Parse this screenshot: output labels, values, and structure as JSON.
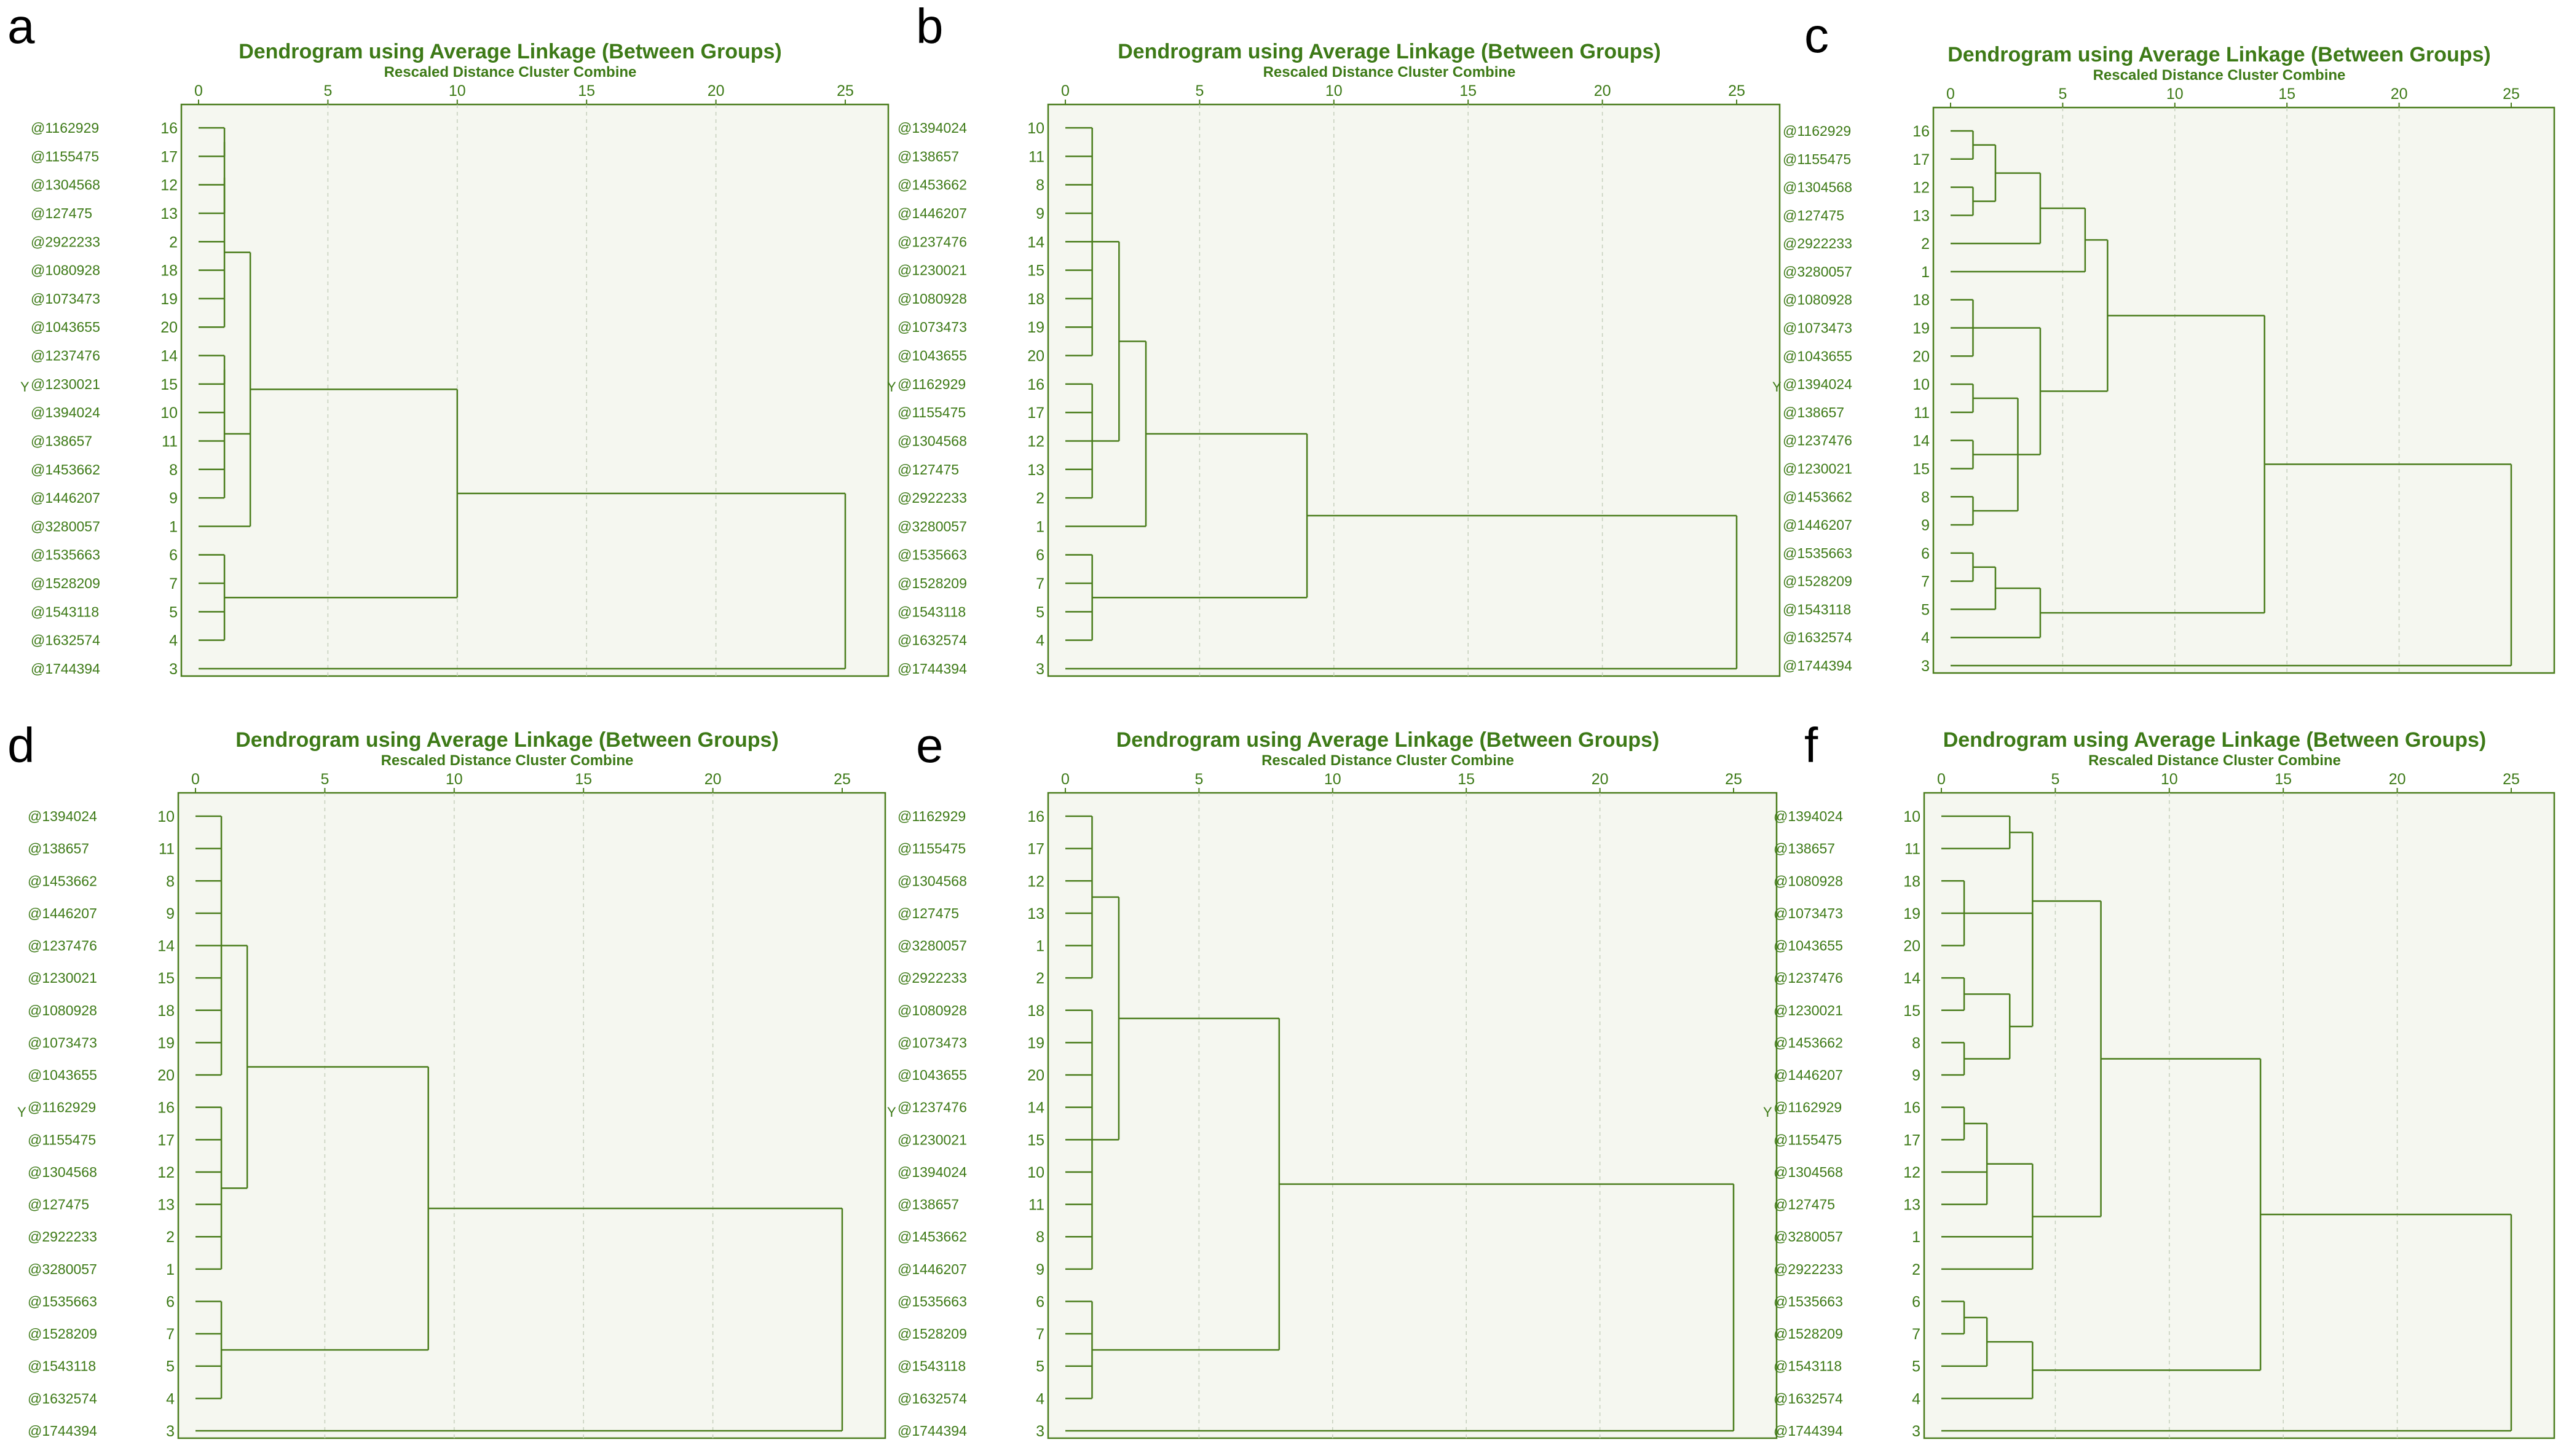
{
  "colors": {
    "line": "#4a7d1c",
    "text": "#3d7a17",
    "plot_bg": "#f5f7f0",
    "grid": "#c5cfbc"
  },
  "chart_data": [
    {
      "panel": "a",
      "type": "dendrogram",
      "title": "Dendrogram using Average Linkage (Between Groups)",
      "xlabel": "Rescaled Distance Cluster Combine",
      "ylabel": "Y",
      "xticks": [
        0,
        5,
        10,
        15,
        20,
        25
      ],
      "xlim": [
        0,
        25
      ],
      "leaves": [
        {
          "label": "@1162929",
          "num": "16"
        },
        {
          "label": "@1155475",
          "num": "17"
        },
        {
          "label": "@1304568",
          "num": "12"
        },
        {
          "label": "@127475",
          "num": "13"
        },
        {
          "label": "@2922233",
          "num": "2"
        },
        {
          "label": "@1080928",
          "num": "18"
        },
        {
          "label": "@1073473",
          "num": "19"
        },
        {
          "label": "@1043655",
          "num": "20"
        },
        {
          "label": "@1237476",
          "num": "14"
        },
        {
          "label": "@1230021",
          "num": "15"
        },
        {
          "label": "@1394024",
          "num": "10"
        },
        {
          "label": "@138657",
          "num": "11"
        },
        {
          "label": "@1453662",
          "num": "8"
        },
        {
          "label": "@1446207",
          "num": "9"
        },
        {
          "label": "@3280057",
          "num": "1"
        },
        {
          "label": "@1535663",
          "num": "6"
        },
        {
          "label": "@1528209",
          "num": "7"
        },
        {
          "label": "@1543118",
          "num": "5"
        },
        {
          "label": "@1632574",
          "num": "4"
        },
        {
          "label": "@1744394",
          "num": "3"
        }
      ],
      "merges": [
        {
          "id": "a1",
          "c": [
            0,
            1
          ],
          "h": 1
        },
        {
          "id": "a2",
          "c": [
            "a1",
            2,
            3
          ],
          "h": 1
        },
        {
          "id": "a3",
          "c": [
            "a2",
            4,
            5,
            6,
            7
          ],
          "h": 1
        },
        {
          "id": "a4",
          "c": [
            8,
            9
          ],
          "h": 1
        },
        {
          "id": "a5",
          "c": [
            "a4",
            10,
            11,
            12,
            13
          ],
          "h": 1
        },
        {
          "id": "a6",
          "c": [
            "a3",
            "a5",
            14
          ],
          "h": 2
        },
        {
          "id": "a7",
          "c": [
            15,
            16,
            17,
            18
          ],
          "h": 1
        },
        {
          "id": "a8",
          "c": [
            "a6",
            "a7"
          ],
          "h": 10
        },
        {
          "id": "a9",
          "c": [
            "a8",
            19
          ],
          "h": 25
        }
      ]
    },
    {
      "panel": "b",
      "type": "dendrogram",
      "title": "Dendrogram using Average Linkage (Between Groups)",
      "xlabel": "Rescaled Distance Cluster Combine",
      "ylabel": "Y",
      "xticks": [
        0,
        5,
        10,
        15,
        20,
        25
      ],
      "xlim": [
        0,
        25
      ],
      "leaves": [
        {
          "label": "@1394024",
          "num": "10"
        },
        {
          "label": "@138657",
          "num": "11"
        },
        {
          "label": "@1453662",
          "num": "8"
        },
        {
          "label": "@1446207",
          "num": "9"
        },
        {
          "label": "@1237476",
          "num": "14"
        },
        {
          "label": "@1230021",
          "num": "15"
        },
        {
          "label": "@1080928",
          "num": "18"
        },
        {
          "label": "@1073473",
          "num": "19"
        },
        {
          "label": "@1043655",
          "num": "20"
        },
        {
          "label": "@1162929",
          "num": "16"
        },
        {
          "label": "@1155475",
          "num": "17"
        },
        {
          "label": "@1304568",
          "num": "12"
        },
        {
          "label": "@127475",
          "num": "13"
        },
        {
          "label": "@2922233",
          "num": "2"
        },
        {
          "label": "@3280057",
          "num": "1"
        },
        {
          "label": "@1535663",
          "num": "6"
        },
        {
          "label": "@1528209",
          "num": "7"
        },
        {
          "label": "@1543118",
          "num": "5"
        },
        {
          "label": "@1632574",
          "num": "4"
        },
        {
          "label": "@1744394",
          "num": "3"
        }
      ],
      "merges": [
        {
          "id": "b1",
          "c": [
            0,
            1,
            2,
            3,
            4,
            5,
            6,
            7,
            8
          ],
          "h": 1
        },
        {
          "id": "b2",
          "c": [
            9,
            10,
            11,
            12,
            13
          ],
          "h": 1
        },
        {
          "id": "b3",
          "c": [
            "b1",
            "b2"
          ],
          "h": 2
        },
        {
          "id": "b4",
          "c": [
            "b3",
            14
          ],
          "h": 3
        },
        {
          "id": "b5",
          "c": [
            15,
            16,
            17,
            18
          ],
          "h": 1
        },
        {
          "id": "b6",
          "c": [
            "b4",
            "b5"
          ],
          "h": 9
        },
        {
          "id": "b7",
          "c": [
            "b6",
            19
          ],
          "h": 25
        }
      ]
    },
    {
      "panel": "c",
      "type": "dendrogram",
      "title": "Dendrogram using Average Linkage (Between Groups)",
      "xlabel": "Rescaled Distance Cluster Combine",
      "ylabel": "Y",
      "xticks": [
        0,
        5,
        10,
        15,
        20,
        25
      ],
      "xlim": [
        0,
        25
      ],
      "leaves": [
        {
          "label": "@1162929",
          "num": "16"
        },
        {
          "label": "@1155475",
          "num": "17"
        },
        {
          "label": "@1304568",
          "num": "12"
        },
        {
          "label": "@127475",
          "num": "13"
        },
        {
          "label": "@2922233",
          "num": "2"
        },
        {
          "label": "@3280057",
          "num": "1"
        },
        {
          "label": "@1080928",
          "num": "18"
        },
        {
          "label": "@1073473",
          "num": "19"
        },
        {
          "label": "@1043655",
          "num": "20"
        },
        {
          "label": "@1394024",
          "num": "10"
        },
        {
          "label": "@138657",
          "num": "11"
        },
        {
          "label": "@1237476",
          "num": "14"
        },
        {
          "label": "@1230021",
          "num": "15"
        },
        {
          "label": "@1453662",
          "num": "8"
        },
        {
          "label": "@1446207",
          "num": "9"
        },
        {
          "label": "@1535663",
          "num": "6"
        },
        {
          "label": "@1528209",
          "num": "7"
        },
        {
          "label": "@1543118",
          "num": "5"
        },
        {
          "label": "@1632574",
          "num": "4"
        },
        {
          "label": "@1744394",
          "num": "3"
        }
      ],
      "merges": [
        {
          "id": "c1",
          "c": [
            0,
            1
          ],
          "h": 1
        },
        {
          "id": "c2",
          "c": [
            2,
            3
          ],
          "h": 1
        },
        {
          "id": "c3",
          "c": [
            "c1",
            "c2"
          ],
          "h": 2
        },
        {
          "id": "c4",
          "c": [
            "c3",
            4
          ],
          "h": 4
        },
        {
          "id": "c5",
          "c": [
            "c4",
            5
          ],
          "h": 6
        },
        {
          "id": "c6",
          "c": [
            6,
            7,
            8
          ],
          "h": 1
        },
        {
          "id": "c7",
          "c": [
            9,
            10
          ],
          "h": 1
        },
        {
          "id": "c8",
          "c": [
            11,
            12
          ],
          "h": 1
        },
        {
          "id": "c9",
          "c": [
            13,
            14
          ],
          "h": 1
        },
        {
          "id": "c10",
          "c": [
            "c7",
            "c8",
            "c9"
          ],
          "h": 3
        },
        {
          "id": "c11",
          "c": [
            "c6",
            "c10"
          ],
          "h": 4
        },
        {
          "id": "c12",
          "c": [
            "c5",
            "c11"
          ],
          "h": 7
        },
        {
          "id": "c13",
          "c": [
            15,
            16
          ],
          "h": 1
        },
        {
          "id": "c14",
          "c": [
            "c13",
            17
          ],
          "h": 2
        },
        {
          "id": "c15",
          "c": [
            "c14",
            18
          ],
          "h": 4
        },
        {
          "id": "c16",
          "c": [
            "c12",
            "c15"
          ],
          "h": 14
        },
        {
          "id": "c17",
          "c": [
            "c16",
            19
          ],
          "h": 25
        }
      ]
    },
    {
      "panel": "d",
      "type": "dendrogram",
      "title": "Dendrogram using Average Linkage (Between Groups)",
      "xlabel": "Rescaled Distance Cluster Combine",
      "ylabel": "Y",
      "xticks": [
        0,
        5,
        10,
        15,
        20,
        25
      ],
      "xlim": [
        0,
        25
      ],
      "leaves": [
        {
          "label": "@1394024",
          "num": "10"
        },
        {
          "label": "@138657",
          "num": "11"
        },
        {
          "label": "@1453662",
          "num": "8"
        },
        {
          "label": "@1446207",
          "num": "9"
        },
        {
          "label": "@1237476",
          "num": "14"
        },
        {
          "label": "@1230021",
          "num": "15"
        },
        {
          "label": "@1080928",
          "num": "18"
        },
        {
          "label": "@1073473",
          "num": "19"
        },
        {
          "label": "@1043655",
          "num": "20"
        },
        {
          "label": "@1162929",
          "num": "16"
        },
        {
          "label": "@1155475",
          "num": "17"
        },
        {
          "label": "@1304568",
          "num": "12"
        },
        {
          "label": "@127475",
          "num": "13"
        },
        {
          "label": "@2922233",
          "num": "2"
        },
        {
          "label": "@3280057",
          "num": "1"
        },
        {
          "label": "@1535663",
          "num": "6"
        },
        {
          "label": "@1528209",
          "num": "7"
        },
        {
          "label": "@1543118",
          "num": "5"
        },
        {
          "label": "@1632574",
          "num": "4"
        },
        {
          "label": "@1744394",
          "num": "3"
        }
      ],
      "merges": [
        {
          "id": "d1",
          "c": [
            0,
            1,
            2,
            3,
            4,
            5,
            6,
            7,
            8
          ],
          "h": 1
        },
        {
          "id": "d2",
          "c": [
            9,
            10,
            11,
            12,
            13,
            14
          ],
          "h": 1
        },
        {
          "id": "d3",
          "c": [
            "d1",
            "d2"
          ],
          "h": 2
        },
        {
          "id": "d4",
          "c": [
            15,
            16,
            17,
            18
          ],
          "h": 1
        },
        {
          "id": "d5",
          "c": [
            "d3",
            "d4"
          ],
          "h": 9
        },
        {
          "id": "d6",
          "c": [
            "d5",
            19
          ],
          "h": 25
        }
      ]
    },
    {
      "panel": "e",
      "type": "dendrogram",
      "title": "Dendrogram using Average Linkage (Between Groups)",
      "xlabel": "Rescaled Distance Cluster Combine",
      "ylabel": "Y",
      "xticks": [
        0,
        5,
        10,
        15,
        20,
        25
      ],
      "xlim": [
        0,
        25
      ],
      "leaves": [
        {
          "label": "@1162929",
          "num": "16"
        },
        {
          "label": "@1155475",
          "num": "17"
        },
        {
          "label": "@1304568",
          "num": "12"
        },
        {
          "label": "@127475",
          "num": "13"
        },
        {
          "label": "@3280057",
          "num": "1"
        },
        {
          "label": "@2922233",
          "num": "2"
        },
        {
          "label": "@1080928",
          "num": "18"
        },
        {
          "label": "@1073473",
          "num": "19"
        },
        {
          "label": "@1043655",
          "num": "20"
        },
        {
          "label": "@1237476",
          "num": "14"
        },
        {
          "label": "@1230021",
          "num": "15"
        },
        {
          "label": "@1394024",
          "num": "10"
        },
        {
          "label": "@138657",
          "num": "11"
        },
        {
          "label": "@1453662",
          "num": "8"
        },
        {
          "label": "@1446207",
          "num": "9"
        },
        {
          "label": "@1535663",
          "num": "6"
        },
        {
          "label": "@1528209",
          "num": "7"
        },
        {
          "label": "@1543118",
          "num": "5"
        },
        {
          "label": "@1632574",
          "num": "4"
        },
        {
          "label": "@1744394",
          "num": "3"
        }
      ],
      "merges": [
        {
          "id": "e1",
          "c": [
            0,
            1,
            2,
            3,
            4,
            5
          ],
          "h": 1
        },
        {
          "id": "e2",
          "c": [
            6,
            7,
            8,
            9,
            10,
            11,
            12,
            13,
            14
          ],
          "h": 1
        },
        {
          "id": "e3",
          "c": [
            "e1",
            "e2"
          ],
          "h": 2
        },
        {
          "id": "e4",
          "c": [
            15,
            16,
            17,
            18
          ],
          "h": 1
        },
        {
          "id": "e5",
          "c": [
            "e3",
            "e4"
          ],
          "h": 8
        },
        {
          "id": "e6",
          "c": [
            "e5",
            19
          ],
          "h": 25
        }
      ]
    },
    {
      "panel": "f",
      "type": "dendrogram",
      "title": "Dendrogram using Average Linkage (Between Groups)",
      "xlabel": "Rescaled Distance Cluster Combine",
      "ylabel": "Y",
      "xticks": [
        0,
        5,
        10,
        15,
        20,
        25
      ],
      "xlim": [
        0,
        25
      ],
      "leaves": [
        {
          "label": "@1394024",
          "num": "10"
        },
        {
          "label": "@138657",
          "num": "11"
        },
        {
          "label": "@1080928",
          "num": "18"
        },
        {
          "label": "@1073473",
          "num": "19"
        },
        {
          "label": "@1043655",
          "num": "20"
        },
        {
          "label": "@1237476",
          "num": "14"
        },
        {
          "label": "@1230021",
          "num": "15"
        },
        {
          "label": "@1453662",
          "num": "8"
        },
        {
          "label": "@1446207",
          "num": "9"
        },
        {
          "label": "@1162929",
          "num": "16"
        },
        {
          "label": "@1155475",
          "num": "17"
        },
        {
          "label": "@1304568",
          "num": "12"
        },
        {
          "label": "@127475",
          "num": "13"
        },
        {
          "label": "@3280057",
          "num": "1"
        },
        {
          "label": "@2922233",
          "num": "2"
        },
        {
          "label": "@1535663",
          "num": "6"
        },
        {
          "label": "@1528209",
          "num": "7"
        },
        {
          "label": "@1543118",
          "num": "5"
        },
        {
          "label": "@1632574",
          "num": "4"
        },
        {
          "label": "@1744394",
          "num": "3"
        }
      ],
      "merges": [
        {
          "id": "f1",
          "c": [
            0,
            1
          ],
          "h": 3
        },
        {
          "id": "f2",
          "c": [
            2,
            3,
            4
          ],
          "h": 1
        },
        {
          "id": "f3",
          "c": [
            5,
            6
          ],
          "h": 1
        },
        {
          "id": "f4",
          "c": [
            7,
            8
          ],
          "h": 1
        },
        {
          "id": "f5",
          "c": [
            "f3",
            "f4"
          ],
          "h": 3
        },
        {
          "id": "f6",
          "c": [
            "f2",
            "f5"
          ],
          "h": 4
        },
        {
          "id": "f7",
          "c": [
            "f1",
            "f6"
          ],
          "h": 4
        },
        {
          "id": "f8",
          "c": [
            9,
            10
          ],
          "h": 1
        },
        {
          "id": "f9",
          "c": [
            "f8",
            11,
            12
          ],
          "h": 2
        },
        {
          "id": "f10",
          "c": [
            "f9",
            13,
            14
          ],
          "h": 4
        },
        {
          "id": "f11",
          "c": [
            "f7",
            "f10"
          ],
          "h": 7
        },
        {
          "id": "f12",
          "c": [
            15,
            16
          ],
          "h": 1
        },
        {
          "id": "f13",
          "c": [
            "f12",
            17
          ],
          "h": 2
        },
        {
          "id": "f14",
          "c": [
            "f13",
            18
          ],
          "h": 4
        },
        {
          "id": "f15",
          "c": [
            "f11",
            "f14"
          ],
          "h": 14
        },
        {
          "id": "f16",
          "c": [
            "f15",
            19
          ],
          "h": 25
        }
      ]
    }
  ]
}
